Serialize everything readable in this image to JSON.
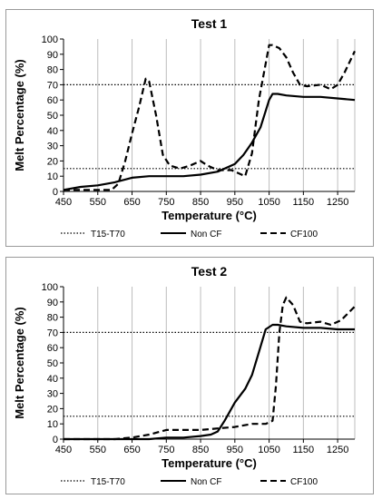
{
  "chart_data": [
    {
      "type": "line",
      "title": "Test 1",
      "xlabel": "Temperature (°C)",
      "ylabel": "Melt Percentage (%)",
      "xlim": [
        450,
        1300
      ],
      "ylim": [
        0,
        100
      ],
      "x_ticks": [
        450,
        550,
        650,
        750,
        850,
        950,
        1050,
        1150,
        1250
      ],
      "y_ticks": [
        0,
        10,
        20,
        30,
        40,
        50,
        60,
        70,
        80,
        90,
        100
      ],
      "grid": "vertical",
      "legend": "bottom",
      "series": [
        {
          "name": "T15-T70",
          "style": "dotted",
          "lines": [
            15,
            70
          ]
        },
        {
          "name": "Non CF",
          "style": "solid",
          "x": [
            450,
            500,
            550,
            600,
            650,
            700,
            750,
            800,
            850,
            900,
            950,
            975,
            1000,
            1025,
            1050,
            1060,
            1075,
            1100,
            1150,
            1200,
            1250,
            1300
          ],
          "y": [
            1,
            3,
            4,
            6,
            9,
            10,
            10,
            10,
            11,
            13,
            18,
            24,
            32,
            42,
            60,
            64,
            64,
            63,
            62,
            62,
            61,
            60
          ]
        },
        {
          "name": "CF100",
          "style": "dashed",
          "x": [
            450,
            500,
            550,
            590,
            610,
            630,
            650,
            670,
            690,
            700,
            720,
            740,
            760,
            790,
            820,
            850,
            870,
            900,
            940,
            980,
            1000,
            1020,
            1050,
            1060,
            1080,
            1100,
            1120,
            1140,
            1160,
            1200,
            1230,
            1250,
            1270,
            1300
          ],
          "y": [
            1,
            1,
            1,
            1,
            5,
            20,
            38,
            55,
            74,
            72,
            50,
            24,
            17,
            15,
            17,
            20,
            17,
            14,
            14,
            10,
            25,
            60,
            96,
            96,
            94,
            88,
            78,
            70,
            69,
            70,
            67,
            70,
            78,
            92
          ]
        }
      ]
    },
    {
      "type": "line",
      "title": "Test 2",
      "xlabel": "Temperature (°C)",
      "ylabel": "Melt Percentage (%)",
      "xlim": [
        450,
        1300
      ],
      "ylim": [
        0,
        100
      ],
      "x_ticks": [
        450,
        550,
        650,
        750,
        850,
        950,
        1050,
        1150,
        1250
      ],
      "y_ticks": [
        0,
        10,
        20,
        30,
        40,
        50,
        60,
        70,
        80,
        90,
        100
      ],
      "grid": "vertical",
      "legend": "bottom",
      "series": [
        {
          "name": "T15-T70",
          "style": "dotted",
          "lines": [
            15,
            70
          ]
        },
        {
          "name": "Non CF",
          "style": "solid",
          "x": [
            450,
            550,
            650,
            700,
            750,
            800,
            850,
            880,
            900,
            920,
            950,
            980,
            1000,
            1020,
            1040,
            1060,
            1075,
            1100,
            1150,
            1200,
            1250,
            1300
          ],
          "y": [
            0,
            0,
            0,
            0,
            1,
            1,
            2,
            3,
            5,
            12,
            24,
            33,
            42,
            57,
            72,
            75,
            75,
            74,
            73,
            73,
            72,
            72
          ]
        },
        {
          "name": "CF100",
          "style": "dashed",
          "x": [
            450,
            550,
            600,
            650,
            700,
            750,
            800,
            850,
            900,
            950,
            1000,
            1040,
            1060,
            1070,
            1080,
            1090,
            1100,
            1120,
            1140,
            1160,
            1200,
            1230,
            1260,
            1300
          ],
          "y": [
            0,
            0,
            0,
            1,
            3,
            6,
            6,
            6,
            7,
            8,
            10,
            10,
            12,
            35,
            70,
            88,
            93,
            88,
            77,
            76,
            77,
            75,
            78,
            87
          ]
        }
      ]
    }
  ]
}
